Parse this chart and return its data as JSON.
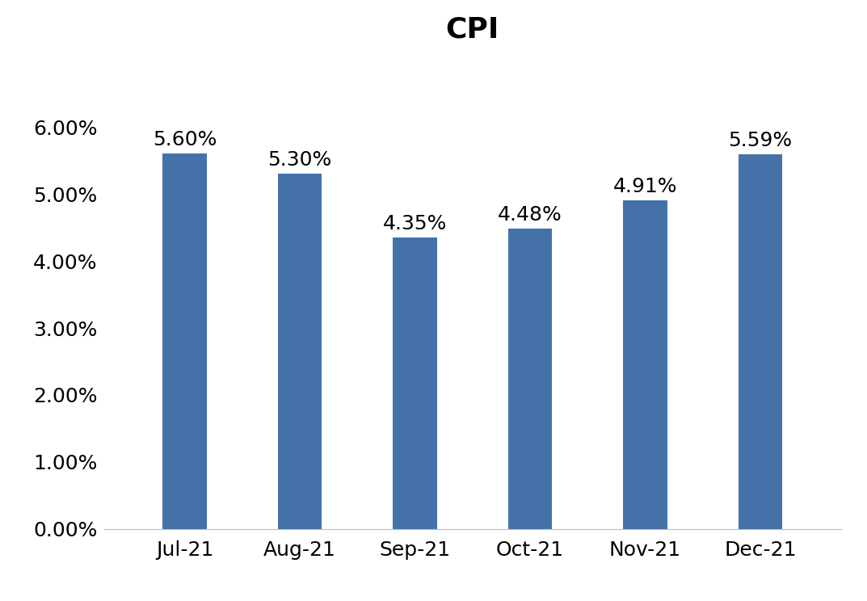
{
  "title": "CPI",
  "categories": [
    "Jul-21",
    "Aug-21",
    "Sep-21",
    "Oct-21",
    "Nov-21",
    "Dec-21"
  ],
  "values": [
    5.6,
    5.3,
    4.35,
    4.48,
    4.91,
    5.59
  ],
  "bar_color": "#4472a8",
  "ylim": [
    0,
    7.0
  ],
  "yticks": [
    0.0,
    1.0,
    2.0,
    3.0,
    4.0,
    5.0,
    6.0
  ],
  "ytick_labels": [
    "0.00%",
    "1.00%",
    "2.00%",
    "3.00%",
    "4.00%",
    "5.00%",
    "6.00%"
  ],
  "title_fontsize": 26,
  "tick_fontsize": 18,
  "label_fontsize": 18,
  "bar_label_fontsize": 18,
  "background_color": "#ffffff"
}
